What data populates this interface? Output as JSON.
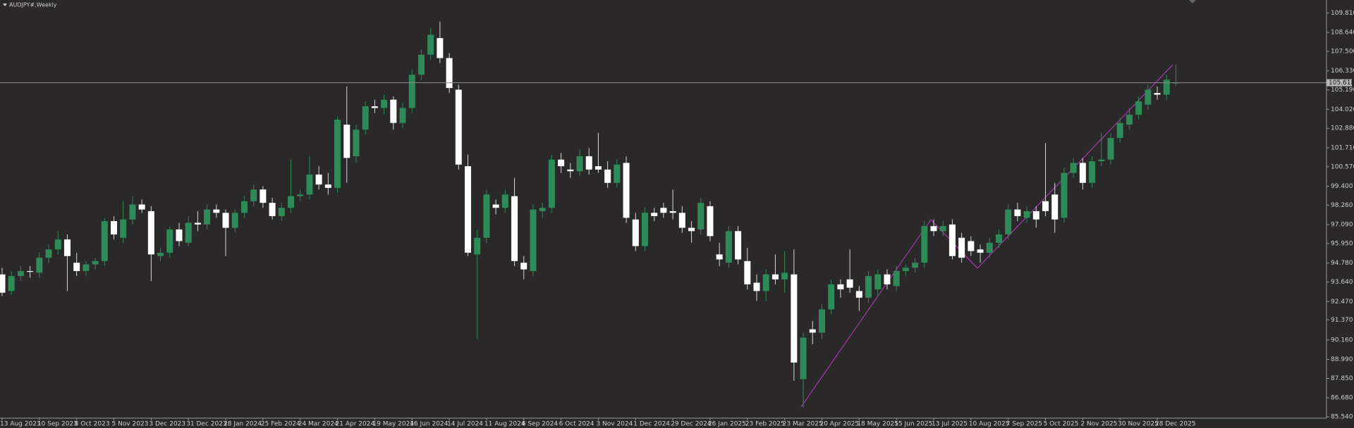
{
  "chart_data": {
    "type": "candlestick",
    "title": "AUDJPY#,Weekly",
    "up_color": "#2e8b57",
    "down_color": "#ffffff",
    "categories": [
      "13 Aug 2023",
      null,
      null,
      null,
      "10 Sep 2023",
      null,
      null,
      null,
      "8 Oct 2023",
      null,
      null,
      null,
      "5 Nov 2023",
      null,
      null,
      null,
      "3 Dec 2023",
      null,
      null,
      null,
      "31 Dec 2023",
      null,
      null,
      null,
      "28 Jan 2024",
      null,
      null,
      null,
      "25 Feb 2024",
      null,
      null,
      null,
      "24 Mar 2024",
      null,
      null,
      null,
      "21 Apr 2024",
      null,
      null,
      null,
      "19 May 2024",
      null,
      null,
      null,
      "16 Jun 2024",
      null,
      null,
      null,
      "14 Jul 2024",
      null,
      null,
      null,
      "11 Aug 2024",
      null,
      null,
      null,
      "8 Sep 2024",
      null,
      null,
      null,
      "6 Oct 2024",
      null,
      null,
      null,
      "3 Nov 2024",
      null,
      null,
      null,
      "1 Dec 2024",
      null,
      null,
      null,
      "29 Dec 2024",
      null,
      null,
      null,
      "26 Jan 2025",
      null,
      null,
      null,
      "23 Feb 2025",
      null,
      null,
      null,
      "23 Mar 2025",
      null,
      null,
      null,
      "20 Apr 2025",
      null,
      null,
      null,
      "18 May 2025",
      null,
      null,
      null,
      "15 Jun 2025",
      null,
      null,
      null,
      "13 Jul 2025",
      null,
      null,
      null,
      "10 Aug 2025",
      null,
      null,
      null,
      "7 Sep 2025",
      null,
      null,
      null,
      "5 Oct 2025",
      null,
      null,
      null,
      "2 Nov 2025",
      null,
      null,
      null,
      "30 Nov 2025",
      null,
      null,
      null,
      "28 Dec 2025",
      null,
      null
    ],
    "ohlc": [
      [
        94.1,
        94.5,
        92.8,
        93.0
      ],
      [
        93.1,
        94.3,
        92.9,
        94.0
      ],
      [
        94.0,
        94.6,
        93.7,
        94.3
      ],
      [
        94.3,
        94.6,
        93.9,
        94.25
      ],
      [
        94.2,
        95.4,
        93.9,
        95.1
      ],
      [
        95.1,
        95.9,
        94.8,
        95.6
      ],
      [
        95.6,
        96.7,
        95.3,
        96.2
      ],
      [
        96.2,
        96.5,
        93.1,
        95.2
      ],
      [
        94.8,
        95.4,
        94.0,
        94.3
      ],
      [
        94.3,
        94.9,
        94.0,
        94.7
      ],
      [
        94.7,
        95.1,
        94.4,
        94.9
      ],
      [
        94.9,
        97.5,
        94.6,
        97.3
      ],
      [
        97.3,
        97.6,
        96.2,
        96.5
      ],
      [
        96.3,
        98.5,
        96.0,
        97.4
      ],
      [
        97.4,
        98.8,
        97.1,
        98.3
      ],
      [
        98.3,
        98.6,
        97.8,
        98.0
      ],
      [
        97.9,
        98.2,
        93.7,
        95.3
      ],
      [
        95.2,
        95.7,
        94.9,
        95.4
      ],
      [
        95.4,
        97.0,
        95.1,
        96.8
      ],
      [
        96.8,
        97.2,
        95.8,
        96.1
      ],
      [
        96.0,
        97.6,
        95.8,
        97.2
      ],
      [
        97.2,
        97.9,
        96.7,
        97.1
      ],
      [
        97.1,
        98.3,
        96.8,
        98.0
      ],
      [
        98.0,
        98.3,
        97.5,
        97.8
      ],
      [
        97.8,
        98.0,
        95.2,
        96.9
      ],
      [
        96.9,
        98.0,
        96.6,
        97.8
      ],
      [
        97.8,
        98.8,
        97.5,
        98.5
      ],
      [
        98.5,
        99.5,
        98.2,
        99.2
      ],
      [
        99.2,
        99.4,
        98.1,
        98.4
      ],
      [
        98.4,
        98.7,
        97.4,
        97.6
      ],
      [
        97.6,
        98.4,
        97.3,
        98.1
      ],
      [
        98.1,
        101.0,
        97.8,
        98.8
      ],
      [
        98.8,
        99.2,
        98.5,
        98.9
      ],
      [
        98.9,
        101.2,
        98.6,
        100.1
      ],
      [
        100.1,
        100.6,
        99.2,
        99.5
      ],
      [
        99.5,
        100.2,
        98.9,
        99.3
      ],
      [
        99.3,
        103.6,
        99.0,
        103.4
      ],
      [
        103.1,
        105.4,
        99.6,
        101.1
      ],
      [
        101.2,
        103.1,
        100.8,
        102.8
      ],
      [
        102.8,
        104.5,
        102.5,
        104.2
      ],
      [
        104.2,
        104.6,
        103.8,
        104.1
      ],
      [
        104.1,
        104.9,
        103.7,
        104.6
      ],
      [
        104.6,
        104.8,
        102.8,
        103.2
      ],
      [
        103.2,
        104.4,
        102.9,
        104.1
      ],
      [
        104.1,
        106.4,
        103.8,
        106.1
      ],
      [
        106.1,
        107.6,
        105.8,
        107.3
      ],
      [
        107.3,
        108.9,
        107.0,
        108.5
      ],
      [
        108.3,
        109.3,
        106.8,
        107.1
      ],
      [
        107.1,
        107.4,
        105.0,
        105.3
      ],
      [
        105.2,
        105.5,
        100.4,
        100.7
      ],
      [
        100.6,
        101.3,
        95.2,
        95.4
      ],
      [
        95.3,
        96.8,
        90.2,
        96.3
      ],
      [
        96.3,
        99.2,
        96.0,
        98.9
      ],
      [
        98.3,
        98.6,
        97.7,
        98.1
      ],
      [
        98.1,
        99.2,
        97.8,
        98.9
      ],
      [
        98.8,
        99.9,
        94.6,
        94.9
      ],
      [
        94.8,
        95.2,
        93.8,
        94.4
      ],
      [
        94.3,
        98.3,
        94.0,
        98.0
      ],
      [
        97.9,
        98.4,
        97.5,
        98.1
      ],
      [
        98.1,
        101.3,
        97.8,
        101.0
      ],
      [
        101.0,
        101.4,
        100.2,
        100.6
      ],
      [
        100.4,
        100.8,
        99.9,
        100.3
      ],
      [
        100.3,
        101.6,
        100.0,
        101.2
      ],
      [
        101.2,
        101.7,
        100.1,
        100.4
      ],
      [
        100.6,
        102.6,
        100.2,
        100.4
      ],
      [
        100.4,
        100.9,
        99.3,
        99.6
      ],
      [
        99.6,
        101.0,
        99.3,
        100.7
      ],
      [
        100.8,
        101.2,
        97.2,
        97.5
      ],
      [
        97.4,
        97.8,
        95.5,
        95.8
      ],
      [
        95.8,
        98.1,
        95.5,
        97.8
      ],
      [
        97.8,
        98.1,
        97.3,
        97.6
      ],
      [
        98.1,
        98.4,
        97.5,
        97.8
      ],
      [
        97.9,
        99.2,
        97.4,
        97.8
      ],
      [
        97.8,
        98.2,
        96.6,
        96.9
      ],
      [
        96.9,
        97.3,
        96.0,
        96.7
      ],
      [
        96.8,
        98.7,
        96.5,
        98.4
      ],
      [
        98.2,
        98.5,
        96.1,
        96.4
      ],
      [
        95.3,
        96.0,
        94.6,
        95.0
      ],
      [
        94.8,
        97.0,
        94.5,
        96.7
      ],
      [
        96.7,
        97.0,
        94.7,
        95.0
      ],
      [
        94.9,
        95.7,
        93.2,
        93.5
      ],
      [
        93.6,
        94.1,
        92.5,
        93.1
      ],
      [
        93.1,
        94.4,
        92.5,
        94.1
      ],
      [
        94.1,
        95.3,
        93.5,
        93.8
      ],
      [
        93.8,
        95.5,
        93.0,
        94.2
      ],
      [
        94.1,
        95.6,
        87.7,
        88.8
      ],
      [
        87.8,
        90.6,
        86.1,
        90.3
      ],
      [
        90.8,
        91.3,
        89.9,
        90.6
      ],
      [
        90.6,
        92.3,
        90.2,
        92.0
      ],
      [
        92.0,
        93.8,
        91.7,
        93.5
      ],
      [
        93.5,
        93.8,
        92.7,
        93.2
      ],
      [
        93.8,
        95.6,
        93.0,
        93.3
      ],
      [
        93.1,
        93.4,
        91.9,
        92.7
      ],
      [
        92.7,
        94.3,
        92.4,
        94.0
      ],
      [
        93.2,
        94.4,
        92.8,
        94.1
      ],
      [
        94.1,
        94.4,
        93.2,
        93.5
      ],
      [
        93.4,
        94.6,
        93.1,
        94.3
      ],
      [
        94.3,
        94.7,
        94.0,
        94.5
      ],
      [
        94.5,
        95.1,
        94.2,
        94.8
      ],
      [
        94.8,
        97.3,
        94.5,
        97.0
      ],
      [
        97.0,
        97.4,
        96.4,
        96.7
      ],
      [
        96.7,
        97.3,
        96.4,
        97.0
      ],
      [
        97.1,
        97.4,
        95.0,
        95.2
      ],
      [
        96.3,
        96.6,
        94.8,
        95.1
      ],
      [
        96.1,
        96.4,
        95.2,
        95.5
      ],
      [
        95.6,
        95.9,
        94.8,
        95.4
      ],
      [
        95.4,
        96.3,
        95.1,
        96.0
      ],
      [
        96.0,
        96.8,
        95.7,
        96.5
      ],
      [
        96.5,
        98.3,
        96.2,
        98.0
      ],
      [
        98.0,
        98.4,
        97.3,
        97.6
      ],
      [
        97.5,
        98.2,
        97.2,
        97.9
      ],
      [
        97.9,
        98.2,
        96.9,
        97.4
      ],
      [
        98.5,
        102.0,
        97.6,
        97.9
      ],
      [
        98.9,
        99.6,
        96.6,
        97.4
      ],
      [
        97.5,
        100.5,
        97.2,
        100.2
      ],
      [
        100.2,
        101.1,
        99.9,
        100.8
      ],
      [
        100.8,
        101.1,
        99.2,
        99.6
      ],
      [
        99.6,
        101.2,
        99.3,
        100.9
      ],
      [
        100.9,
        102.6,
        100.6,
        101.0
      ],
      [
        101.0,
        102.6,
        100.7,
        102.3
      ],
      [
        102.3,
        103.5,
        102.0,
        103.2
      ],
      [
        103.1,
        104.1,
        102.8,
        103.7
      ],
      [
        103.7,
        104.8,
        103.4,
        104.5
      ],
      [
        104.3,
        105.5,
        104.0,
        105.2
      ],
      [
        105.0,
        105.4,
        104.6,
        104.9
      ],
      [
        104.9,
        106.1,
        104.6,
        105.8
      ],
      [
        105.6,
        106.7,
        105.4,
        105.618
      ]
    ],
    "current_price": 105.618,
    "ylim": [
      85.46,
      110.59
    ],
    "yticks": [
      {
        "value": 109.81,
        "label": "109.810"
      },
      {
        "value": 108.64,
        "label": "108.640"
      },
      {
        "value": 107.5,
        "label": "107.500"
      },
      {
        "value": 106.33,
        "label": "106.330"
      },
      {
        "value": 105.19,
        "label": "105.190"
      },
      {
        "value": 104.02,
        "label": "104.020"
      },
      {
        "value": 102.88,
        "label": "102.880"
      },
      {
        "value": 101.71,
        "label": "101.710"
      },
      {
        "value": 100.57,
        "label": "100.570"
      },
      {
        "value": 99.4,
        "label": "99.400"
      },
      {
        "value": 98.26,
        "label": "98.260"
      },
      {
        "value": 97.09,
        "label": "97.090"
      },
      {
        "value": 95.95,
        "label": "95.950"
      },
      {
        "value": 94.78,
        "label": "94.780"
      },
      {
        "value": 93.64,
        "label": "93.640"
      },
      {
        "value": 92.47,
        "label": "92.470"
      },
      {
        "value": 91.37,
        "label": "91.370"
      },
      {
        "value": 90.16,
        "label": "90.160"
      },
      {
        "value": 88.99,
        "label": "88.990"
      },
      {
        "value": 87.85,
        "label": "87.850"
      },
      {
        "value": 86.68,
        "label": "86.680"
      },
      {
        "value": 85.54,
        "label": "85.540"
      }
    ]
  }
}
